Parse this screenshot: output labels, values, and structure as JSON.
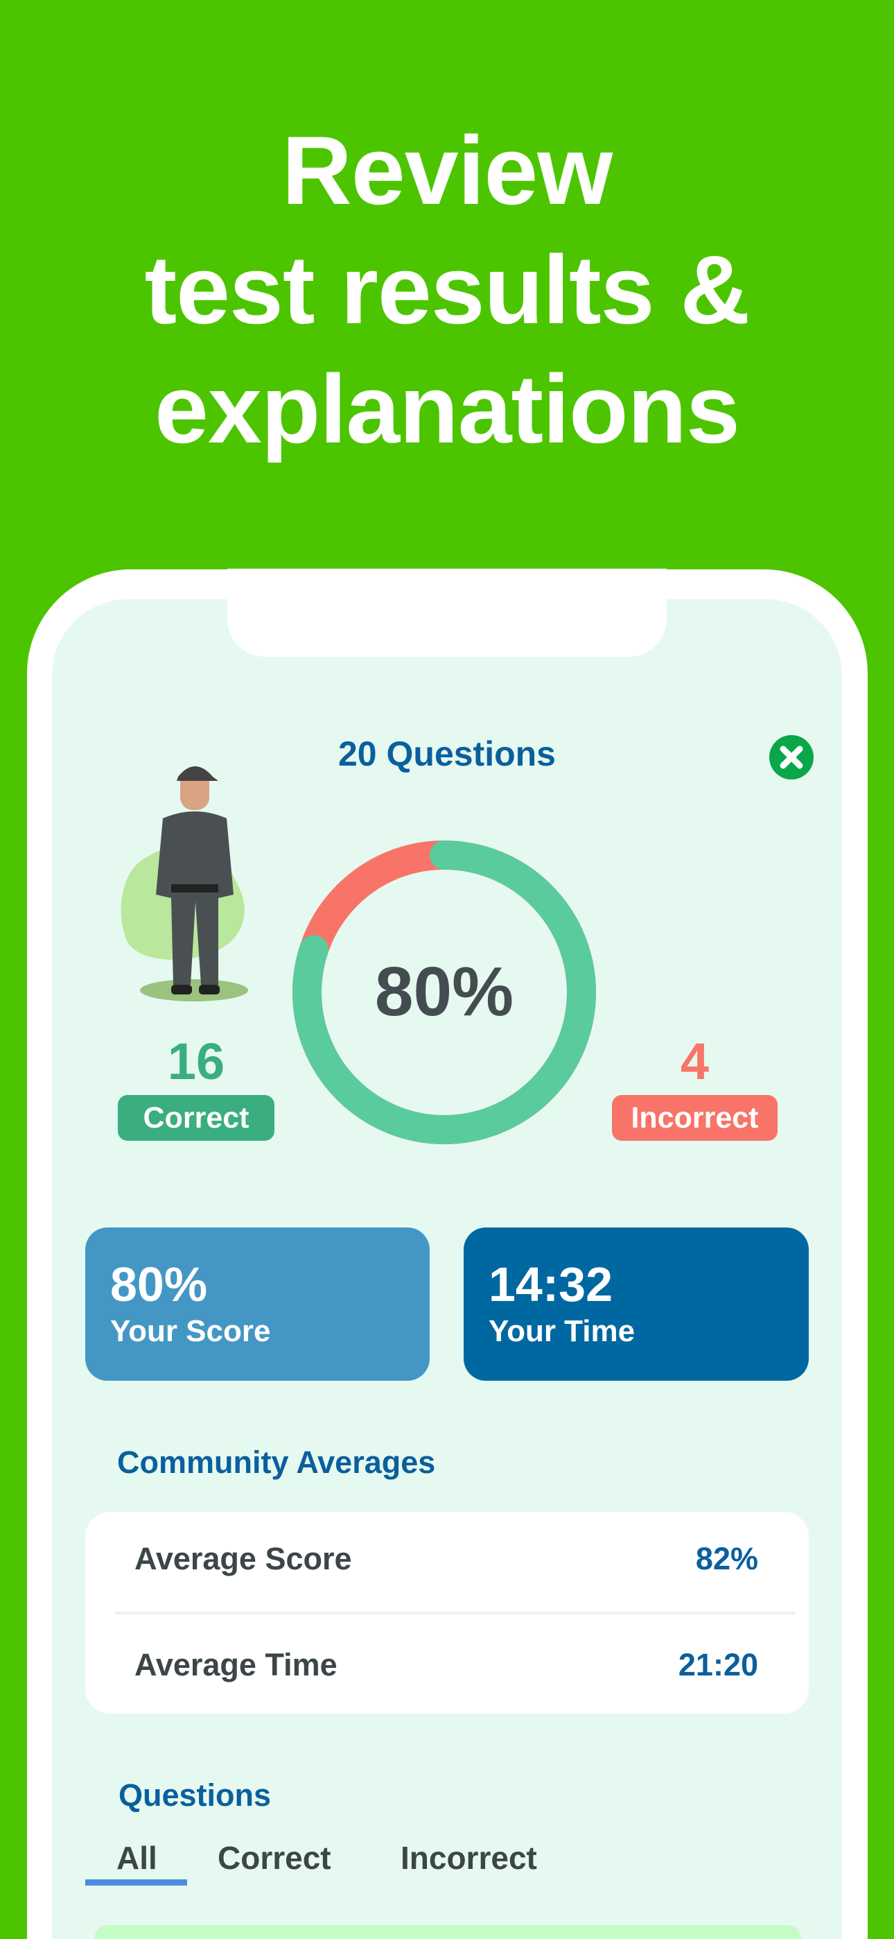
{
  "headline": [
    "Review",
    "test results &",
    "explanations"
  ],
  "results": {
    "title": "20 Questions",
    "score_percent_label": "80%",
    "score_fraction": 0.8,
    "correct_count": "16",
    "correct_label": "Correct",
    "incorrect_count": "4",
    "incorrect_label": "Incorrect"
  },
  "cards": {
    "score_value": "80%",
    "score_label": "Your Score",
    "time_value": "14:32",
    "time_label": "Your Time"
  },
  "community": {
    "title": "Community Averages",
    "rows": [
      {
        "label": "Average Score",
        "value": "82%"
      },
      {
        "label": "Average Time",
        "value": "21:20"
      }
    ]
  },
  "questions": {
    "title": "Questions",
    "tabs": [
      "All",
      "Correct",
      "Incorrect"
    ],
    "active_tab": "All"
  },
  "colors": {
    "background": "#4cc500",
    "screen": "#e6f9f0",
    "primary": "#0a5f9e",
    "correct": "#3aae7e",
    "ring_correct": "#5acb9c",
    "incorrect": "#f87468",
    "close": "#0aa64a",
    "score_card": "#4497c5",
    "time_card": "#0068a0",
    "tab_underline": "#4a8de0"
  }
}
